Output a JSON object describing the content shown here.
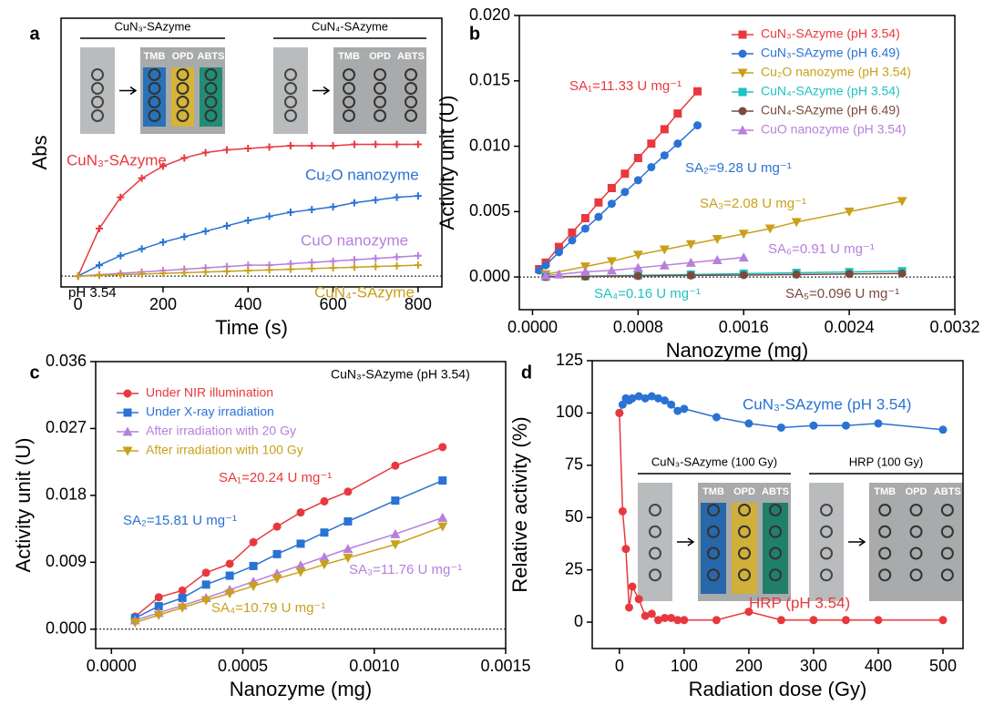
{
  "chart_data": [
    {
      "type": "line",
      "panel": "a",
      "xlabel": "Time (s)",
      "ylabel": "Abs",
      "xlim": [
        -40,
        856
      ],
      "ylim": [
        -0.08,
        1.9
      ],
      "xticks": [
        0,
        200,
        400,
        600,
        800
      ],
      "yticks": [],
      "zero_line": true,
      "legend": false,
      "x": [
        0,
        50,
        100,
        150,
        200,
        250,
        300,
        350,
        400,
        450,
        500,
        550,
        600,
        650,
        700,
        750,
        800
      ],
      "series": [
        {
          "name": "CuN₃-SAzyme",
          "color": "#e8383d",
          "marker": "plus",
          "values": [
            0,
            0.35,
            0.58,
            0.72,
            0.81,
            0.87,
            0.91,
            0.93,
            0.94,
            0.95,
            0.96,
            0.96,
            0.96,
            0.97,
            0.97,
            0.97,
            0.97
          ]
        },
        {
          "name": "Cu₂O nanozyme",
          "color": "#2a72d4",
          "marker": "plus",
          "values": [
            0,
            0.08,
            0.15,
            0.2,
            0.25,
            0.29,
            0.33,
            0.37,
            0.41,
            0.44,
            0.47,
            0.49,
            0.51,
            0.54,
            0.56,
            0.58,
            0.59
          ]
        },
        {
          "name": "CuO nanozyme",
          "color": "#b77fdc",
          "marker": "plus",
          "values": [
            0,
            0.01,
            0.02,
            0.03,
            0.04,
            0.05,
            0.06,
            0.07,
            0.08,
            0.08,
            0.09,
            0.1,
            0.11,
            0.12,
            0.13,
            0.14,
            0.15
          ]
        },
        {
          "name": "CuN₄-SAzyme",
          "color": "#c9a01a",
          "marker": "plus",
          "values": [
            0,
            0.005,
            0.01,
            0.015,
            0.02,
            0.025,
            0.03,
            0.035,
            0.04,
            0.045,
            0.05,
            0.055,
            0.06,
            0.065,
            0.07,
            0.075,
            0.08
          ]
        }
      ],
      "annotations": [
        {
          "text": "pH 3.54",
          "color": "#000000"
        }
      ],
      "insets": [
        {
          "title": "CuN₃-SAzyme",
          "labels": [
            "TMB",
            "OPD",
            "ABTS"
          ]
        },
        {
          "title": "CuN₄-SAzyme",
          "labels": [
            "TMB",
            "OPD",
            "ABTS"
          ]
        }
      ]
    },
    {
      "type": "scatter",
      "panel": "b",
      "xlabel": "Nanozyme (mg)",
      "ylabel": "Activity unit (U)",
      "xlim": [
        -0.0001,
        0.0032
      ],
      "ylim": [
        -0.0025,
        0.02
      ],
      "xticks": [
        {
          "value": 0,
          "label": "0.0000"
        },
        0.0008,
        0.0016,
        0.0024,
        0.0032
      ],
      "yticks": [
        {
          "value": 0,
          "label": "0.000"
        },
        0.005,
        {
          "value": 0.01,
          "label": "0.010"
        },
        0.015,
        {
          "value": 0.02,
          "label": "0.020"
        }
      ],
      "zero_line": true,
      "legend": "upper right",
      "series": [
        {
          "name": "CuN₃-SAzyme (pH 3.54)",
          "color": "#e8383d",
          "marker": "square",
          "x": [
            5e-05,
            0.0001,
            0.0002,
            0.0003,
            0.0004,
            0.0005,
            0.0006,
            0.0007,
            0.0008,
            0.0009,
            0.001,
            0.0011,
            0.00125
          ],
          "values": [
            0.0006,
            0.0011,
            0.0023,
            0.0034,
            0.0045,
            0.0057,
            0.0068,
            0.0079,
            0.0091,
            0.0102,
            0.0113,
            0.0125,
            0.0142
          ]
        },
        {
          "name": "CuN₃-SAzyme (pH 6.49)",
          "color": "#2a72d4",
          "marker": "circle",
          "x": [
            5e-05,
            0.0001,
            0.0002,
            0.0003,
            0.0004,
            0.0005,
            0.0006,
            0.0007,
            0.0008,
            0.0009,
            0.001,
            0.0011,
            0.00125
          ],
          "values": [
            0.0005,
            0.0009,
            0.0019,
            0.0028,
            0.0037,
            0.0046,
            0.0056,
            0.0065,
            0.0074,
            0.0084,
            0.0093,
            0.0102,
            0.0116
          ]
        },
        {
          "name": "Cu₂O nanozyme (pH 3.54)",
          "color": "#c9a01a",
          "marker": "tri-down",
          "x": [
            0.0001,
            0.0004,
            0.0006,
            0.0008,
            0.001,
            0.0012,
            0.0014,
            0.0016,
            0.0018,
            0.002,
            0.0024,
            0.0028
          ],
          "values": [
            0.0002,
            0.0008,
            0.0012,
            0.0017,
            0.0021,
            0.0025,
            0.0029,
            0.0033,
            0.0037,
            0.0042,
            0.005,
            0.0058
          ]
        },
        {
          "name": "CuN₄-SAzyme (pH 3.54)",
          "color": "#1fc2c2",
          "marker": "square",
          "x": [
            0.0001,
            0.0004,
            0.0008,
            0.0012,
            0.0016,
            0.002,
            0.0024,
            0.0028
          ],
          "values": [
            2e-05,
            6e-05,
            0.00013,
            0.00019,
            0.00026,
            0.00032,
            0.00038,
            0.00045
          ]
        },
        {
          "name": "CuN₄-SAzyme (pH 6.49)",
          "color": "#7b4a3c",
          "marker": "circle",
          "x": [
            0.0001,
            0.0004,
            0.0008,
            0.0012,
            0.0016,
            0.002,
            0.0024,
            0.0028
          ],
          "values": [
            1e-05,
            4e-05,
            8e-05,
            0.00012,
            0.00015,
            0.00019,
            0.00023,
            0.00027
          ]
        },
        {
          "name": "CuO nanozyme (pH 3.54)",
          "color": "#b77fdc",
          "marker": "tri-up",
          "x": [
            0.0001,
            0.0002,
            0.0004,
            0.0006,
            0.0008,
            0.001,
            0.0012,
            0.0014,
            0.0016
          ],
          "values": [
            0.0001,
            0.0002,
            0.0004,
            0.0005,
            0.0007,
            0.0009,
            0.0011,
            0.0013,
            0.0015
          ]
        }
      ],
      "annotations": [
        {
          "text": "SA₁=11.33 U mg⁻¹",
          "color": "#e8383d"
        },
        {
          "text": "SA₂=9.28 U mg⁻¹",
          "color": "#2a72d4"
        },
        {
          "text": "SA₃=2.08 U mg⁻¹",
          "color": "#c9a01a"
        },
        {
          "text": "SA₆=0.91 U mg⁻¹",
          "color": "#b77fdc"
        },
        {
          "text": "SA₄=0.16 U mg⁻¹",
          "color": "#1fc2c2"
        },
        {
          "text": "SA₅=0.096 U mg⁻¹",
          "color": "#7b4a3c"
        }
      ]
    },
    {
      "type": "scatter",
      "panel": "c",
      "xlabel": "Nanozyme (mg)",
      "ylabel": "Activity unit (U)",
      "xlim": [
        -6e-05,
        0.0015
      ],
      "ylim": [
        -0.0026,
        0.036
      ],
      "xticks": [
        {
          "value": 0,
          "label": "0.0000"
        },
        0.0005,
        {
          "value": 0.001,
          "label": "0.0010"
        },
        0.0015
      ],
      "yticks": [
        {
          "value": 0,
          "label": "0.000"
        },
        0.009,
        0.018,
        0.027,
        0.036
      ],
      "zero_line": true,
      "legend": "upper left",
      "x": [
        9e-05,
        0.00018,
        0.00027,
        0.00036,
        0.00045,
        0.00054,
        0.00063,
        0.00072,
        0.00081,
        0.0009,
        0.00108,
        0.00126
      ],
      "series": [
        {
          "name": "Under NIR illumination",
          "color": "#e8383d",
          "marker": "circle",
          "values": [
            0.0017,
            0.0043,
            0.0052,
            0.0076,
            0.0088,
            0.0117,
            0.0138,
            0.0157,
            0.0172,
            0.0185,
            0.022,
            0.0245
          ]
        },
        {
          "name": "Under X-ray irradiation",
          "color": "#2a72d4",
          "marker": "square",
          "values": [
            0.0015,
            0.0031,
            0.0042,
            0.006,
            0.0072,
            0.0085,
            0.0101,
            0.0115,
            0.013,
            0.0145,
            0.0173,
            0.02
          ]
        },
        {
          "name": "After irradiation with 20 Gy",
          "color": "#b77fdc",
          "marker": "tri-up",
          "values": [
            0.0012,
            0.0022,
            0.0032,
            0.0042,
            0.0053,
            0.0064,
            0.0075,
            0.0086,
            0.0097,
            0.0108,
            0.0128,
            0.015
          ]
        },
        {
          "name": "After irradiation with 100 Gy",
          "color": "#c9a01a",
          "marker": "tri-down",
          "values": [
            0.0009,
            0.0019,
            0.0029,
            0.0039,
            0.0048,
            0.0058,
            0.0068,
            0.0077,
            0.0087,
            0.0096,
            0.0114,
            0.0138
          ]
        }
      ],
      "annotations": [
        {
          "text": "CuN₃-SAzyme (pH 3.54)",
          "color": "#000000"
        },
        {
          "text": "SA₁=20.24 U mg⁻¹",
          "color": "#e8383d"
        },
        {
          "text": "SA₂=15.81 U mg⁻¹",
          "color": "#2a72d4"
        },
        {
          "text": "SA₃=11.76 U mg⁻¹",
          "color": "#b77fdc"
        },
        {
          "text": "SA₄=10.79 U mg⁻¹",
          "color": "#c9a01a"
        }
      ]
    },
    {
      "type": "line",
      "panel": "d",
      "xlabel": "Radiation dose (Gy)",
      "ylabel": "Relative activity (%)",
      "xlim": [
        -42,
        531
      ],
      "ylim": [
        -12.6,
        125
      ],
      "xticks": [
        0,
        100,
        200,
        300,
        400,
        500
      ],
      "yticks": [
        0,
        25,
        50,
        75,
        100,
        125
      ],
      "zero_line": false,
      "legend": false,
      "x": [
        0,
        5,
        10,
        15,
        20,
        30,
        40,
        50,
        60,
        70,
        80,
        90,
        100,
        150,
        200,
        250,
        300,
        350,
        400,
        500
      ],
      "series": [
        {
          "name": "CuN₃-SAzyme (pH 3.54)",
          "color": "#2a72d4",
          "marker": "circle",
          "values": [
            100,
            104,
            107,
            106,
            107,
            108,
            107,
            108,
            107,
            106,
            104,
            101,
            102,
            98,
            95,
            93,
            94,
            94,
            95,
            92
          ]
        },
        {
          "name": "HRP (pH 3.54)",
          "color": "#e8383d",
          "marker": "circle",
          "values": [
            100,
            53,
            35,
            7,
            17,
            11,
            3,
            4,
            1,
            2,
            2,
            1,
            1,
            1,
            5,
            1,
            1,
            1,
            1,
            1
          ]
        }
      ],
      "annotations": [],
      "insets": [
        {
          "title": "CuN₃-SAzyme (100 Gy)",
          "labels": [
            "TMB",
            "OPD",
            "ABTS"
          ]
        },
        {
          "title": "HRP (100 Gy)",
          "labels": [
            "TMB",
            "OPD",
            "ABTS"
          ]
        }
      ]
    }
  ]
}
